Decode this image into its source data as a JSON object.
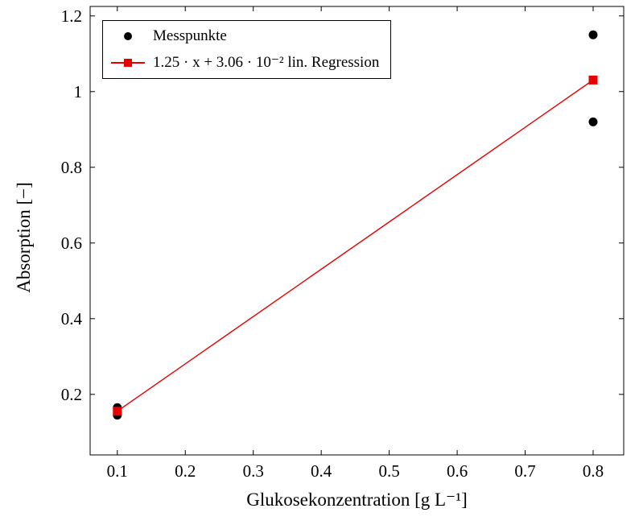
{
  "chart_data": {
    "type": "scatter",
    "title": "",
    "xlabel": "Glukosekonzentration [g L⁻¹]",
    "ylabel": "Absorption [−]",
    "xlim": [
      0.06,
      0.845
    ],
    "ylim": [
      0.04,
      1.225
    ],
    "xticks": [
      0.1,
      0.2,
      0.3,
      0.4,
      0.5,
      0.6,
      0.7,
      0.8
    ],
    "xtick_labels": [
      "0.1",
      "0.2",
      "0.3",
      "0.4",
      "0.5",
      "0.6",
      "0.7",
      "0.8"
    ],
    "yticks": [
      0.2,
      0.4,
      0.6,
      0.8,
      1.0,
      1.2
    ],
    "ytick_labels": [
      "0.2",
      "0.4",
      "0.6",
      "0.8",
      "1",
      "1.2"
    ],
    "grid": false,
    "legend_position": "top-left",
    "axis_color": "#000000",
    "regression": {
      "slope": 1.25,
      "intercept": 0.0306
    },
    "series": [
      {
        "name": "Messpunkte",
        "type": "scatter",
        "marker": "circle",
        "color": "#000000",
        "points": [
          [
            0.1,
            0.145
          ],
          [
            0.1,
            0.165
          ],
          [
            0.8,
            0.92
          ],
          [
            0.8,
            1.15
          ]
        ]
      },
      {
        "name": "1.25 · x + 3.06 · 10⁻² lin. Regression",
        "type": "line",
        "marker": "square",
        "color": "#e60000",
        "points": [
          [
            0.1,
            0.1556
          ],
          [
            0.8,
            1.0306
          ]
        ]
      }
    ]
  }
}
